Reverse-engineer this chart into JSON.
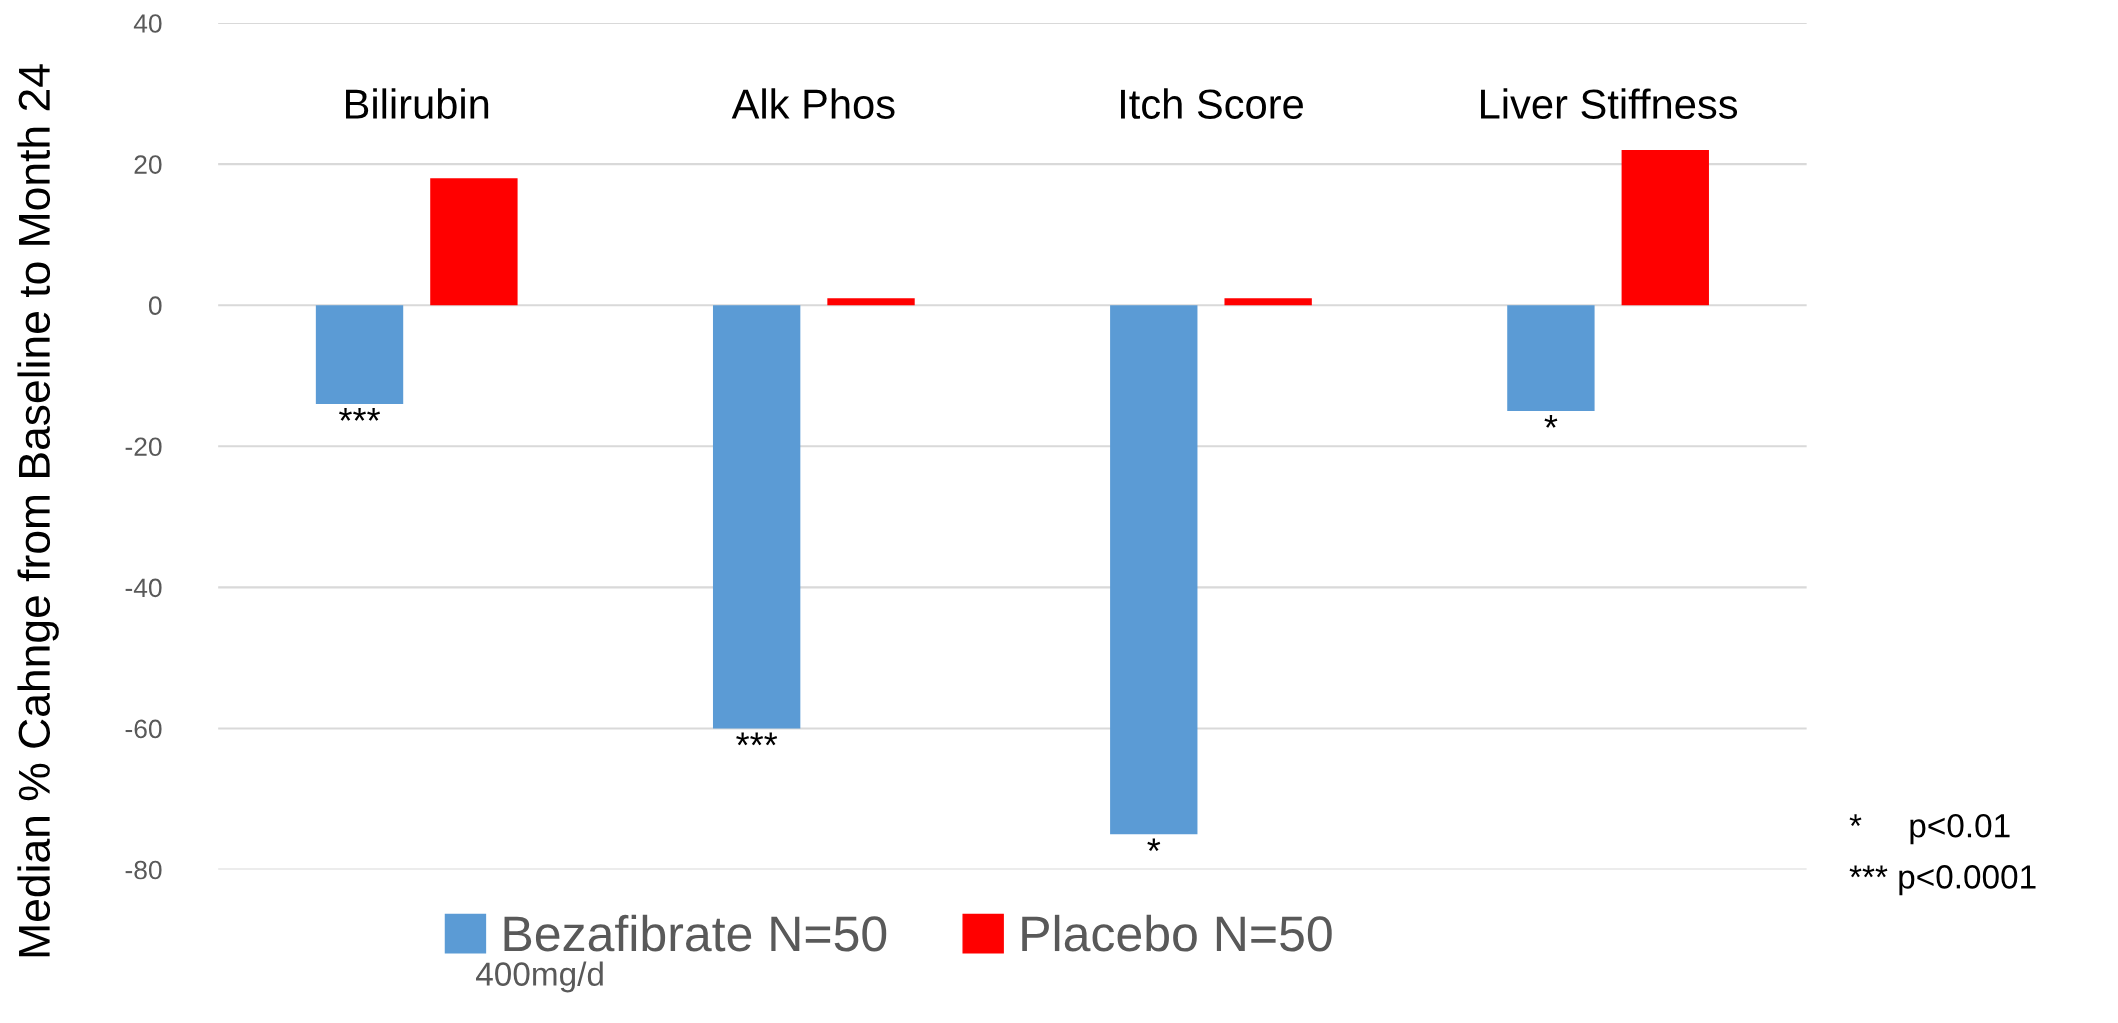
{
  "chart_data": {
    "type": "bar",
    "ylabel": "Median % Cahnge from Baseline to Month 24",
    "categories": [
      "Bilirubin",
      "Alk Phos",
      "Itch Score",
      "Liver Stiffness"
    ],
    "series": [
      {
        "name": "Bezafibrate N=50",
        "color": "#5b9bd5",
        "values": [
          -14,
          -60,
          -75,
          -15
        ]
      },
      {
        "name": "Placebo N=50",
        "color": "#ff0000",
        "values": [
          18,
          1,
          1,
          22
        ]
      }
    ],
    "ylim": [
      -80,
      40
    ],
    "yticks": [
      -80,
      -60,
      -40,
      -20,
      0,
      20,
      40
    ],
    "grid": "y",
    "legend": "bottom",
    "annotations": [
      "***",
      "***",
      "*",
      "*",
      "400mg/d",
      "*     p<0.01",
      "*** p<0.0001"
    ]
  }
}
